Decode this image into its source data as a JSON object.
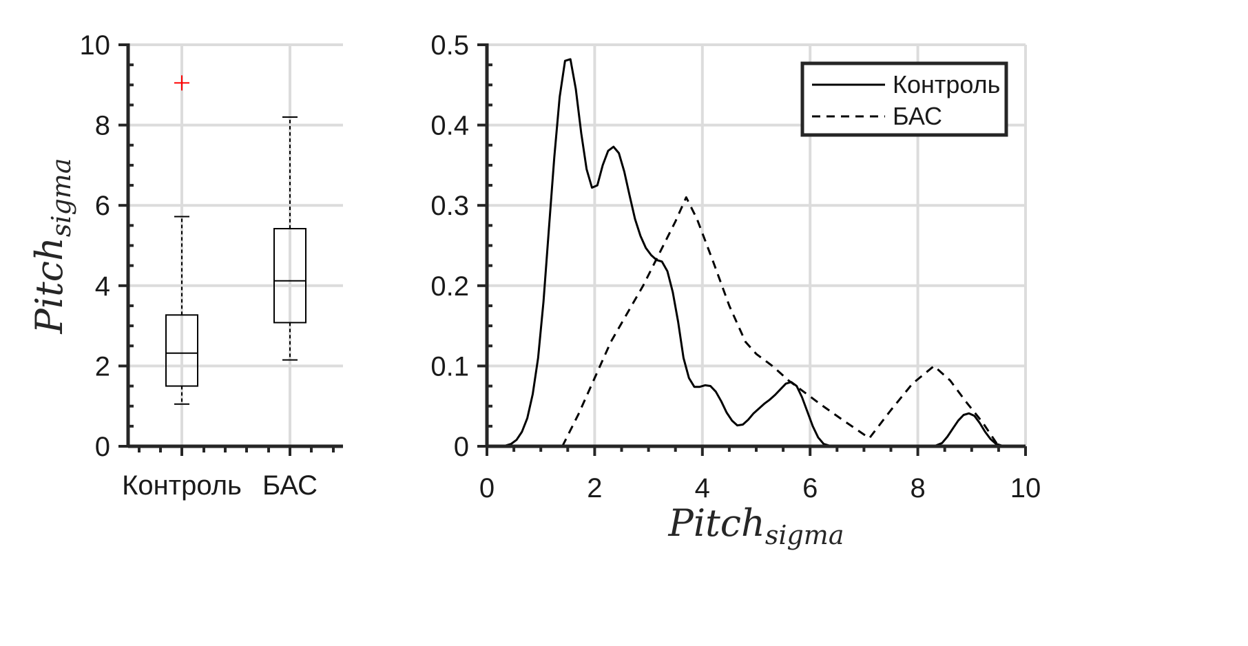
{
  "chart_data": [
    {
      "type": "box",
      "categories": [
        "Контроль",
        "БАС"
      ],
      "ylabel": "Pitch",
      "ylabel_sub": "sigma",
      "ylim": [
        0,
        10
      ],
      "yticks": [
        0,
        2,
        4,
        6,
        8,
        10
      ],
      "grid": true,
      "boxes": [
        {
          "category": "Контроль",
          "whisker_low": 1.05,
          "q1": 1.5,
          "median": 2.32,
          "q3": 3.27,
          "whisker_high": 5.72,
          "outliers": [
            9.05
          ]
        },
        {
          "category": "БАС",
          "whisker_low": 2.15,
          "q1": 3.08,
          "median": 4.12,
          "q3": 5.42,
          "whisker_high": 8.2,
          "outliers": []
        }
      ],
      "colors": {
        "box": "#000000",
        "outlier": "#ff0000",
        "grid": "#dcdcdc"
      }
    },
    {
      "type": "line",
      "xlabel": "Pitch",
      "xlabel_sub": "sigma",
      "xlim": [
        0,
        10
      ],
      "ylim": [
        0,
        0.5
      ],
      "xticks": [
        0,
        2,
        4,
        6,
        8,
        10
      ],
      "yticks": [
        0,
        0.1,
        0.2,
        0.3,
        0.4,
        0.5
      ],
      "grid": true,
      "legend": {
        "location": "top-right"
      },
      "series": [
        {
          "name": "Контроль",
          "style": "solid",
          "x": [
            0.0,
            0.3,
            0.45,
            0.55,
            0.65,
            0.75,
            0.85,
            0.95,
            1.05,
            1.15,
            1.25,
            1.35,
            1.45,
            1.55,
            1.65,
            1.75,
            1.85,
            1.95,
            2.05,
            2.15,
            2.25,
            2.35,
            2.45,
            2.55,
            2.65,
            2.75,
            2.85,
            2.95,
            3.05,
            3.15,
            3.25,
            3.35,
            3.45,
            3.55,
            3.65,
            3.75,
            3.85,
            3.95,
            4.05,
            4.15,
            4.25,
            4.35,
            4.45,
            4.55,
            4.65,
            4.75,
            4.85,
            4.95,
            5.05,
            5.15,
            5.25,
            5.35,
            5.45,
            5.55,
            5.65,
            5.75,
            5.85,
            5.95,
            6.05,
            6.15,
            6.25,
            6.4,
            8.3,
            8.45,
            8.55,
            8.65,
            8.75,
            8.85,
            8.95,
            9.05,
            9.15,
            9.25,
            9.35,
            9.45,
            9.55,
            9.65,
            9.75,
            9.9
          ],
          "y": [
            0.0,
            0.0,
            0.003,
            0.008,
            0.018,
            0.035,
            0.065,
            0.11,
            0.18,
            0.27,
            0.36,
            0.435,
            0.48,
            0.482,
            0.445,
            0.39,
            0.345,
            0.322,
            0.325,
            0.35,
            0.368,
            0.373,
            0.365,
            0.342,
            0.312,
            0.283,
            0.262,
            0.247,
            0.238,
            0.232,
            0.23,
            0.218,
            0.192,
            0.155,
            0.11,
            0.085,
            0.074,
            0.074,
            0.076,
            0.075,
            0.068,
            0.056,
            0.042,
            0.032,
            0.026,
            0.027,
            0.033,
            0.041,
            0.047,
            0.053,
            0.058,
            0.064,
            0.071,
            0.078,
            0.08,
            0.075,
            0.061,
            0.043,
            0.025,
            0.011,
            0.003,
            0.0,
            0.0,
            0.004,
            0.012,
            0.022,
            0.032,
            0.039,
            0.041,
            0.038,
            0.029,
            0.018,
            0.009,
            0.003,
            0.001,
            0.0,
            0.0,
            0.0
          ]
        },
        {
          "name": "БАС",
          "style": "dashed",
          "x": [
            1.4,
            1.7,
            2.0,
            2.3,
            2.6,
            2.9,
            3.2,
            3.5,
            3.7,
            3.9,
            4.2,
            4.5,
            4.8,
            5.0,
            5.3,
            5.6,
            5.9,
            6.2,
            6.6,
            7.1,
            7.5,
            7.9,
            8.3,
            8.6,
            8.9,
            9.2,
            9.5
          ],
          "y": [
            0.0,
            0.04,
            0.085,
            0.13,
            0.165,
            0.2,
            0.24,
            0.28,
            0.31,
            0.283,
            0.23,
            0.175,
            0.13,
            0.115,
            0.1,
            0.082,
            0.067,
            0.052,
            0.033,
            0.01,
            0.045,
            0.078,
            0.1,
            0.082,
            0.055,
            0.03,
            0.0
          ]
        }
      ]
    }
  ]
}
